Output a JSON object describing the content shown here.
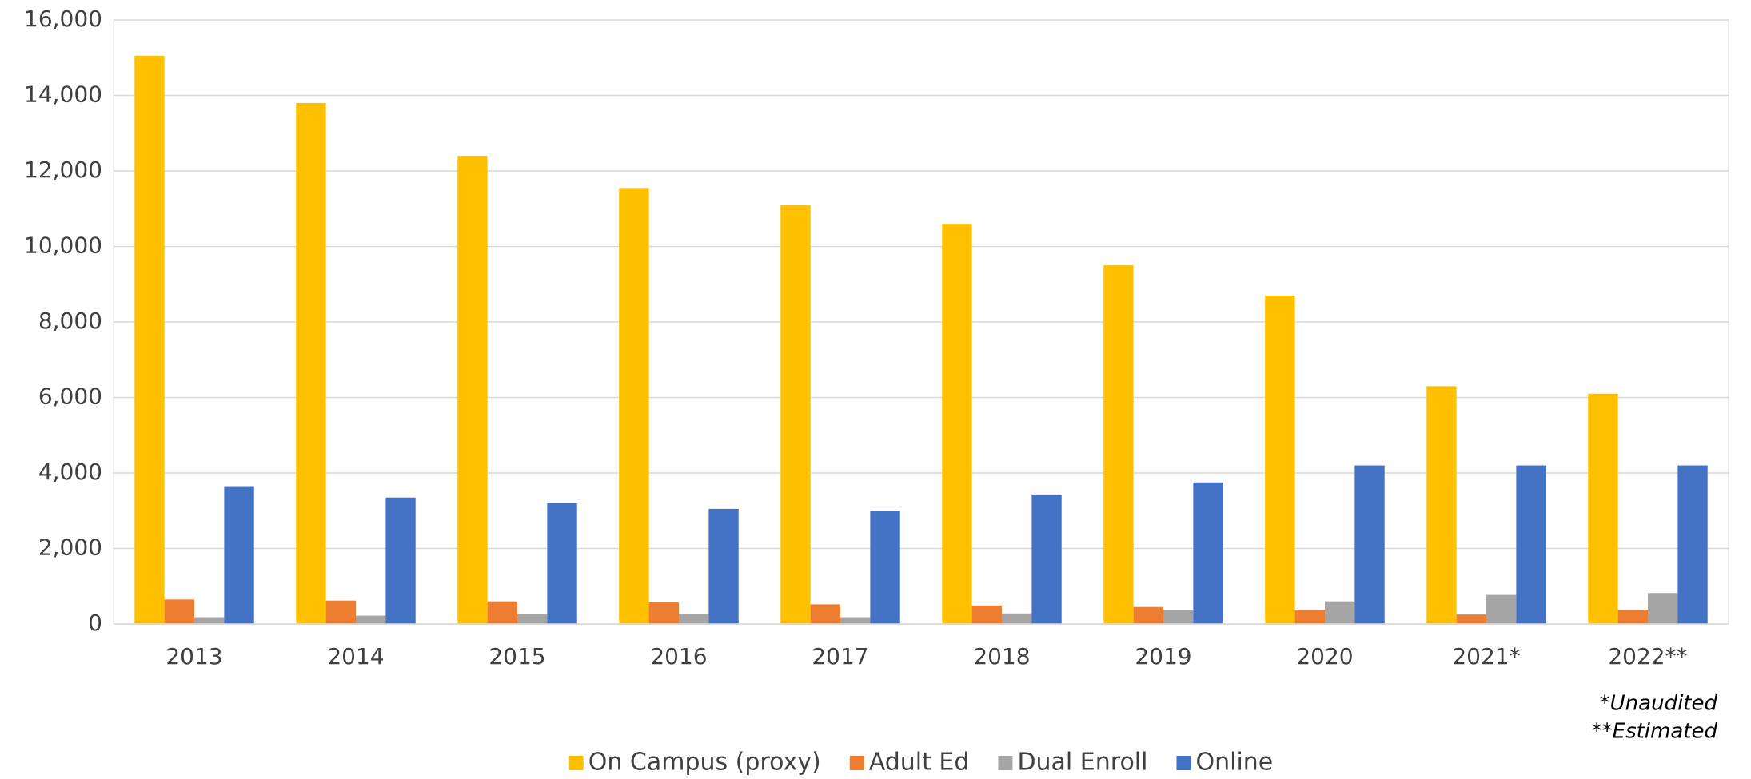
{
  "chart_data": {
    "type": "bar",
    "categories": [
      "2013",
      "2014",
      "2015",
      "2016",
      "2017",
      "2018",
      "2019",
      "2020",
      "2021*",
      "2022**"
    ],
    "series": [
      {
        "name": "On Campus (proxy)",
        "color": "#ffc000",
        "values": [
          15050,
          13800,
          12400,
          11550,
          11100,
          10600,
          9500,
          8700,
          6300,
          6100
        ]
      },
      {
        "name": "Adult Ed",
        "color": "#ed7d31",
        "values": [
          650,
          620,
          600,
          570,
          520,
          490,
          450,
          380,
          250,
          380
        ]
      },
      {
        "name": "Dual Enroll",
        "color": "#a5a5a5",
        "values": [
          180,
          220,
          260,
          270,
          180,
          280,
          380,
          600,
          770,
          820
        ]
      },
      {
        "name": "Online",
        "color": "#4472c4",
        "values": [
          3650,
          3350,
          3200,
          3050,
          3000,
          3430,
          3750,
          4200,
          4200,
          4200
        ]
      }
    ],
    "ylim": [
      0,
      16000
    ],
    "yticks": [
      0,
      {
        "value": 2000,
        "label": "2,000"
      },
      {
        "value": 4000,
        "label": "4,000"
      },
      {
        "value": 6000,
        "label": "6,000"
      },
      {
        "value": 8000,
        "label": "8,000"
      },
      {
        "value": 10000,
        "label": "10,000"
      },
      {
        "value": 12000,
        "label": "12,000"
      },
      {
        "value": 14000,
        "label": "14,000"
      },
      {
        "value": 16000,
        "label": "16,000"
      }
    ],
    "grid": true,
    "legend": "bottom",
    "annotations": [
      "*Unaudited",
      "**Estimated"
    ]
  }
}
